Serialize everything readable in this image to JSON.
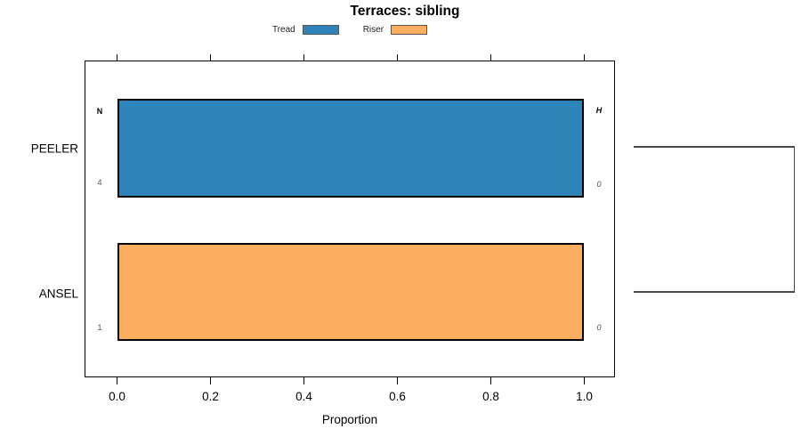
{
  "chart_data": {
    "type": "bar",
    "orientation": "horizontal",
    "title": "Terraces: sibling",
    "xlabel": "Proportion",
    "xlim": [
      0,
      1.05
    ],
    "x_ticks": [
      0.0,
      0.2,
      0.4,
      0.6,
      0.8,
      1.0
    ],
    "x_tick_labels": [
      "0.0",
      "0.2",
      "0.4",
      "0.6",
      "0.8",
      "1.0"
    ],
    "categories": [
      "PEELER",
      "ANSEL"
    ],
    "column_headers": {
      "left": "N",
      "right": "H"
    },
    "bars": [
      {
        "category": "PEELER",
        "series": "Tread",
        "proportion": 1.0,
        "color": "#2E83B8",
        "n": "4",
        "h": "0"
      },
      {
        "category": "ANSEL",
        "series": "Riser",
        "proportion": 1.0,
        "color": "#FBAD60",
        "n": "1",
        "h": "0"
      }
    ],
    "legend": {
      "position": "top",
      "items": [
        {
          "label": "Tread",
          "color": "#2E83B8"
        },
        {
          "label": "Riser",
          "color": "#FBAD60"
        }
      ]
    },
    "grid": false,
    "frame": true,
    "dendrogram": {
      "side": "right",
      "joins": [
        "PEELER",
        "ANSEL"
      ],
      "line_color": "#4A4A4A"
    },
    "colors": {
      "bar_border": "#000000",
      "axis": "#000000",
      "annotation_value": "#555555"
    }
  }
}
